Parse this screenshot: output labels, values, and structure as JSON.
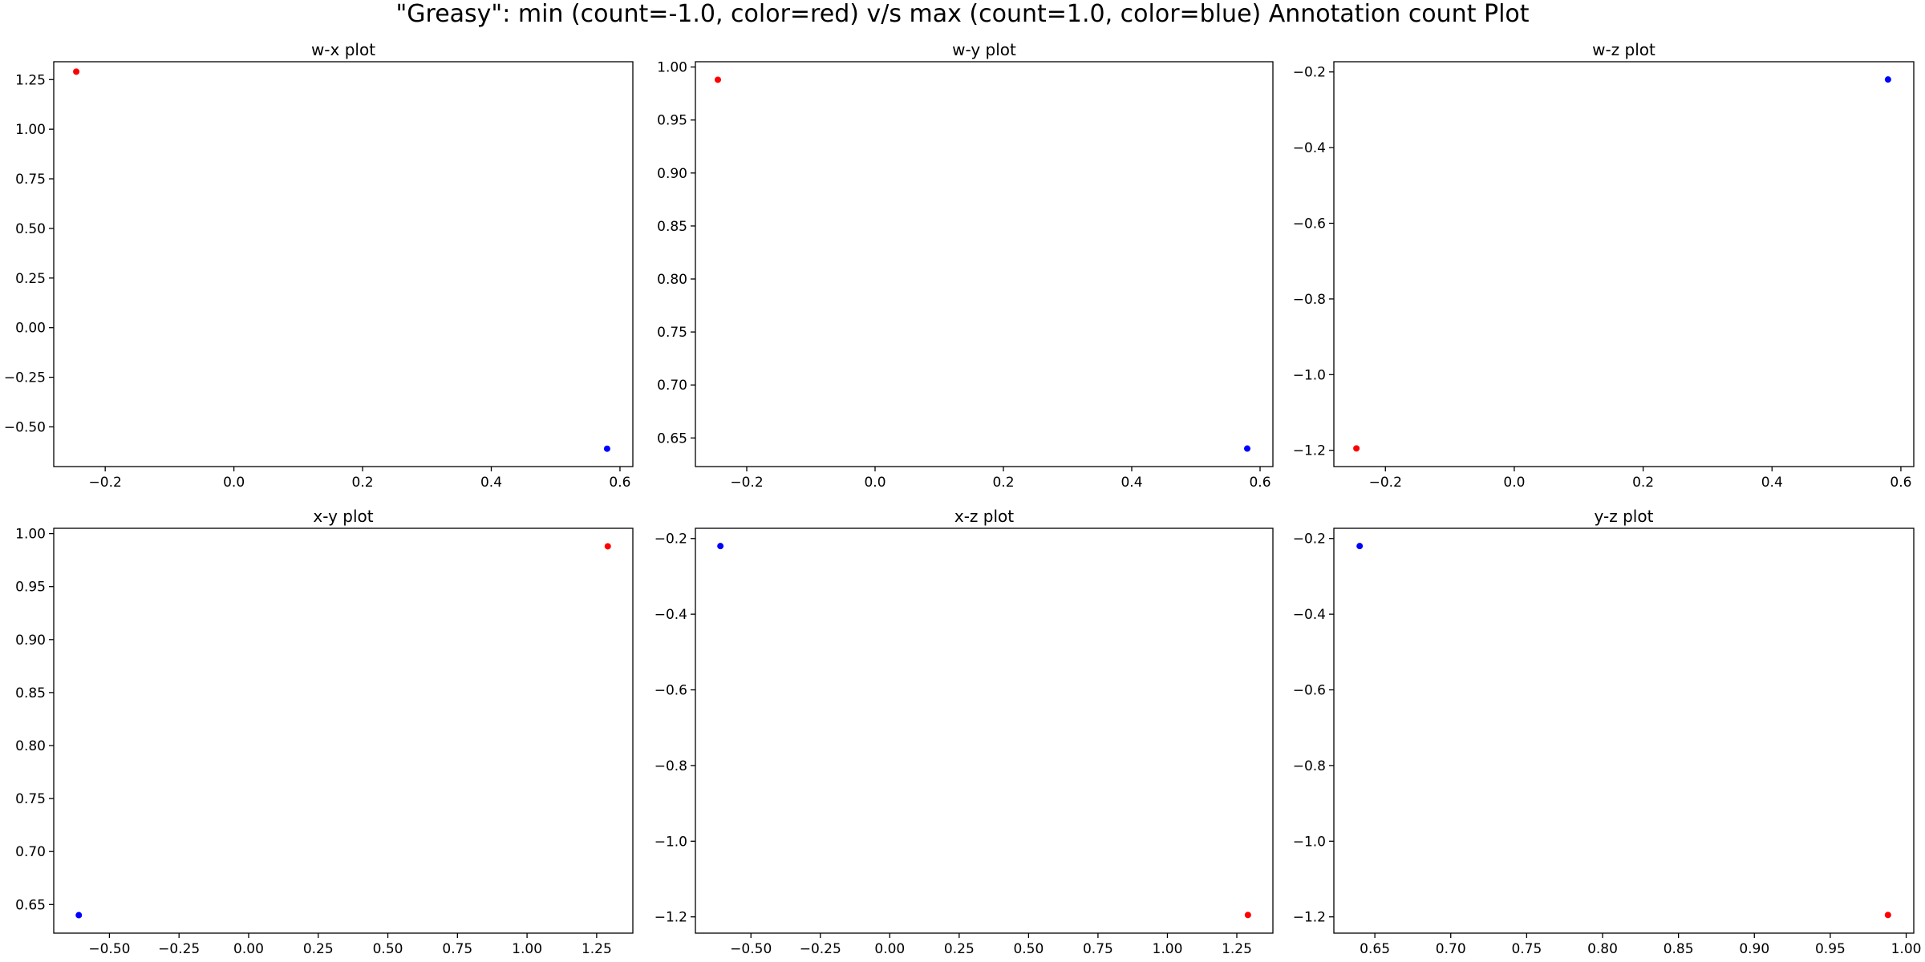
{
  "figure": {
    "title": "\"Greasy\": min (count=-1.0, color=red) v/s max (count=1.0, color=blue) Annotation count Plot"
  },
  "chart_data": [
    {
      "type": "scatter",
      "title": "w-x plot",
      "xlabel": "",
      "ylabel": "",
      "xlim": [
        -0.28,
        0.62
      ],
      "ylim": [
        -0.7,
        1.34
      ],
      "xticks": [
        -0.2,
        0.0,
        0.2,
        0.4,
        0.6
      ],
      "xtick_labels": [
        "−0.2",
        "0.0",
        "0.2",
        "0.4",
        "0.6"
      ],
      "yticks": [
        -0.5,
        -0.25,
        0.0,
        0.25,
        0.5,
        0.75,
        1.0,
        1.25
      ],
      "ytick_labels": [
        "−0.50",
        "−0.25",
        "0.00",
        "0.25",
        "0.50",
        "0.75",
        "1.00",
        "1.25"
      ],
      "grid": false,
      "points": [
        {
          "x": -0.245,
          "y": 1.29,
          "color": "#ff0000"
        },
        {
          "x": 0.58,
          "y": -0.61,
          "color": "#0000ff"
        }
      ]
    },
    {
      "type": "scatter",
      "title": "w-y plot",
      "xlabel": "",
      "ylabel": "",
      "xlim": [
        -0.28,
        0.62
      ],
      "ylim": [
        0.623,
        1.005
      ],
      "xticks": [
        -0.2,
        0.0,
        0.2,
        0.4,
        0.6
      ],
      "xtick_labels": [
        "−0.2",
        "0.0",
        "0.2",
        "0.4",
        "0.6"
      ],
      "yticks": [
        0.65,
        0.7,
        0.75,
        0.8,
        0.85,
        0.9,
        0.95,
        1.0
      ],
      "ytick_labels": [
        "0.65",
        "0.70",
        "0.75",
        "0.80",
        "0.85",
        "0.90",
        "0.95",
        "1.00"
      ],
      "grid": false,
      "points": [
        {
          "x": -0.245,
          "y": 0.988,
          "color": "#ff0000"
        },
        {
          "x": 0.58,
          "y": 0.64,
          "color": "#0000ff"
        }
      ]
    },
    {
      "type": "scatter",
      "title": "w-z plot",
      "xlabel": "",
      "ylabel": "",
      "xlim": [
        -0.28,
        0.62
      ],
      "ylim": [
        -1.243,
        -0.173
      ],
      "xticks": [
        -0.2,
        0.0,
        0.2,
        0.4,
        0.6
      ],
      "xtick_labels": [
        "−0.2",
        "0.0",
        "0.2",
        "0.4",
        "0.6"
      ],
      "yticks": [
        -1.2,
        -1.0,
        -0.8,
        -0.6,
        -0.4,
        -0.2
      ],
      "ytick_labels": [
        "−1.2",
        "−1.0",
        "−0.8",
        "−0.6",
        "−0.4",
        "−0.2"
      ],
      "grid": false,
      "points": [
        {
          "x": -0.245,
          "y": -1.195,
          "color": "#ff0000"
        },
        {
          "x": 0.58,
          "y": -0.22,
          "color": "#0000ff"
        }
      ]
    },
    {
      "type": "scatter",
      "title": "x-y plot",
      "xlabel": "",
      "ylabel": "",
      "xlim": [
        -0.7,
        1.38
      ],
      "ylim": [
        0.623,
        1.005
      ],
      "xticks": [
        -0.5,
        -0.25,
        0.0,
        0.25,
        0.5,
        0.75,
        1.0,
        1.25
      ],
      "xtick_labels": [
        "−0.50",
        "−0.25",
        "0.00",
        "0.25",
        "0.50",
        "0.75",
        "1.00",
        "1.25"
      ],
      "yticks": [
        0.65,
        0.7,
        0.75,
        0.8,
        0.85,
        0.9,
        0.95,
        1.0
      ],
      "ytick_labels": [
        "0.65",
        "0.70",
        "0.75",
        "0.80",
        "0.85",
        "0.90",
        "0.95",
        "1.00"
      ],
      "grid": false,
      "points": [
        {
          "x": 1.29,
          "y": 0.988,
          "color": "#ff0000"
        },
        {
          "x": -0.61,
          "y": 0.64,
          "color": "#0000ff"
        }
      ]
    },
    {
      "type": "scatter",
      "title": "x-z plot",
      "xlabel": "",
      "ylabel": "",
      "xlim": [
        -0.7,
        1.38
      ],
      "ylim": [
        -1.243,
        -0.173
      ],
      "xticks": [
        -0.5,
        -0.25,
        0.0,
        0.25,
        0.5,
        0.75,
        1.0,
        1.25
      ],
      "xtick_labels": [
        "−0.50",
        "−0.25",
        "0.00",
        "0.25",
        "0.50",
        "0.75",
        "1.00",
        "1.25"
      ],
      "yticks": [
        -1.2,
        -1.0,
        -0.8,
        -0.6,
        -0.4,
        -0.2
      ],
      "ytick_labels": [
        "−1.2",
        "−1.0",
        "−0.8",
        "−0.6",
        "−0.4",
        "−0.2"
      ],
      "grid": false,
      "points": [
        {
          "x": 1.29,
          "y": -1.195,
          "color": "#ff0000"
        },
        {
          "x": -0.61,
          "y": -0.22,
          "color": "#0000ff"
        }
      ]
    },
    {
      "type": "scatter",
      "title": "y-z plot",
      "xlabel": "",
      "ylabel": "",
      "xlim": [
        0.623,
        1.005
      ],
      "ylim": [
        -1.243,
        -0.173
      ],
      "xticks": [
        0.65,
        0.7,
        0.75,
        0.8,
        0.85,
        0.9,
        0.95,
        1.0
      ],
      "xtick_labels": [
        "0.65",
        "0.70",
        "0.75",
        "0.80",
        "0.85",
        "0.90",
        "0.95",
        "1.00"
      ],
      "yticks": [
        -1.2,
        -1.0,
        -0.8,
        -0.6,
        -0.4,
        -0.2
      ],
      "ytick_labels": [
        "−1.2",
        "−1.0",
        "−0.8",
        "−0.6",
        "−0.4",
        "−0.2"
      ],
      "grid": false,
      "points": [
        {
          "x": 0.988,
          "y": -1.195,
          "color": "#ff0000"
        },
        {
          "x": 0.64,
          "y": -0.22,
          "color": "#0000ff"
        }
      ]
    }
  ]
}
